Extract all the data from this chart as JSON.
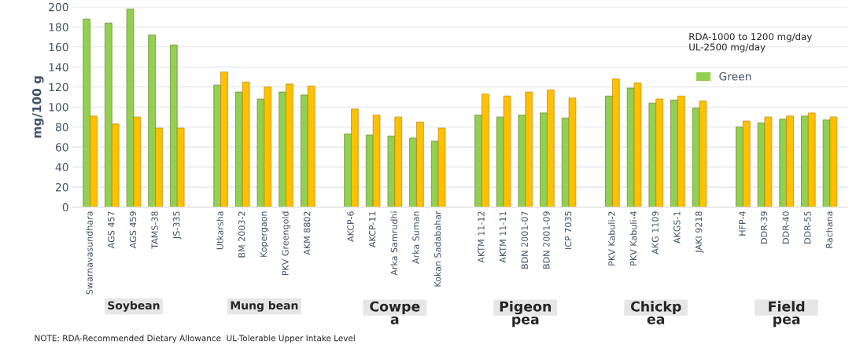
{
  "chart_data": {
    "type": "bar",
    "ylabel": "mg/100 g",
    "categories": [
      "Swarnavasundhara",
      "AGS 457",
      "AGS 459",
      "TAMS-38",
      "JS-335",
      null,
      "Utkarsha",
      "BM 2003-2",
      "Kopergaon",
      "PKV Greengold",
      "AKM 8802",
      null,
      "AKCP-6",
      "AKCP-11",
      "Arka Samrudhi",
      "Arka Suman",
      "Kokan Sadabahar",
      null,
      "AKTM 11-12",
      "AKTM 11-11",
      "BDN 2001-07",
      "BDN 2001-09",
      "ICP 7035",
      null,
      "PKV Kabuli-2",
      "PKV Kabuli-4",
      "AKG 1109",
      "AKGS-1",
      "JAKI 9218",
      null,
      "HFP-4",
      "DDR-39",
      "DDR-40",
      "DDR-55",
      "Rachana"
    ],
    "series": [
      {
        "name": "Green",
        "color": "#92d050",
        "values": [
          188,
          184,
          198,
          172,
          162,
          null,
          122,
          115,
          108,
          115,
          112,
          null,
          73,
          72,
          71,
          69,
          66,
          null,
          92,
          90,
          92,
          94,
          89,
          null,
          111,
          119,
          104,
          107,
          99,
          null,
          80,
          84,
          88,
          91,
          87
        ]
      },
      {
        "color": "#ffc000",
        "values": [
          91,
          83,
          90,
          79,
          79,
          null,
          135,
          125,
          120,
          123,
          121,
          null,
          98,
          92,
          90,
          85,
          79,
          null,
          113,
          111,
          115,
          117,
          109,
          null,
          128,
          124,
          108,
          111,
          106,
          null,
          86,
          90,
          91,
          94,
          90
        ]
      }
    ],
    "ylim": [
      0,
      200
    ],
    "yticks": [
      0,
      20,
      40,
      60,
      80,
      100,
      120,
      140,
      160,
      180,
      200
    ],
    "grid": "y",
    "legend": "top right",
    "annotations": [
      "RDA-1000 to 1200 mg/day\nUL-2500 mg/day",
      "NOTE: RDA-Recommended Dietary Allowance  UL-Tolerable Upper Intake Level",
      "Soybean",
      "Mung bean",
      "Cowpe\na",
      "Pigeon\npea",
      "Chickp\nea",
      "Field\npea"
    ]
  }
}
